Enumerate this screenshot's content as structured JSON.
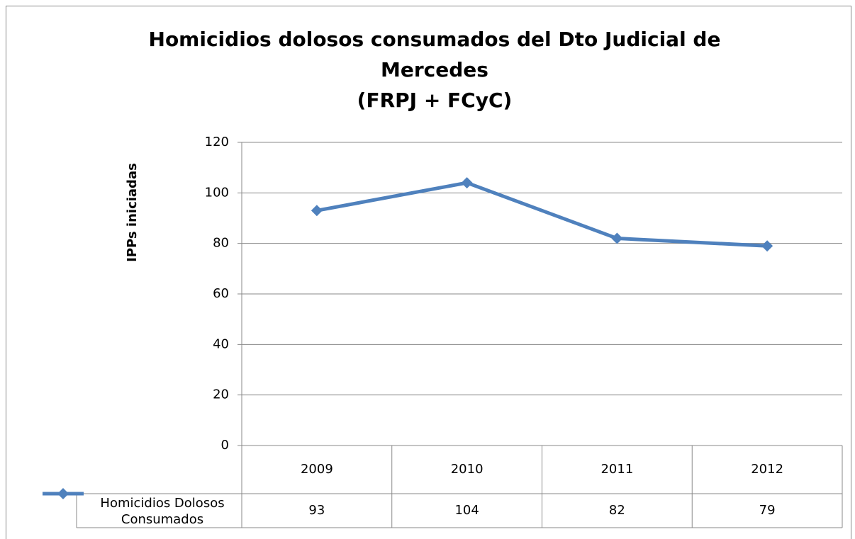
{
  "chart_data": {
    "type": "line",
    "title": [
      "Homicidios dolosos consumados del Dto Judicial de",
      "Mercedes",
      "(FRPJ + FCyC)"
    ],
    "y_label": "IPPs iniciadas",
    "categories": [
      "2009",
      "2010",
      "2011",
      "2012"
    ],
    "series": [
      {
        "name": "Homicidios Dolosos Consumados",
        "color": "#4f81bd",
        "values": [
          93,
          104,
          82,
          79
        ]
      }
    ],
    "ylim": [
      0,
      120
    ],
    "yticks": [
      0,
      20,
      40,
      60,
      80,
      100,
      120
    ],
    "grid": true,
    "data_table": true
  }
}
